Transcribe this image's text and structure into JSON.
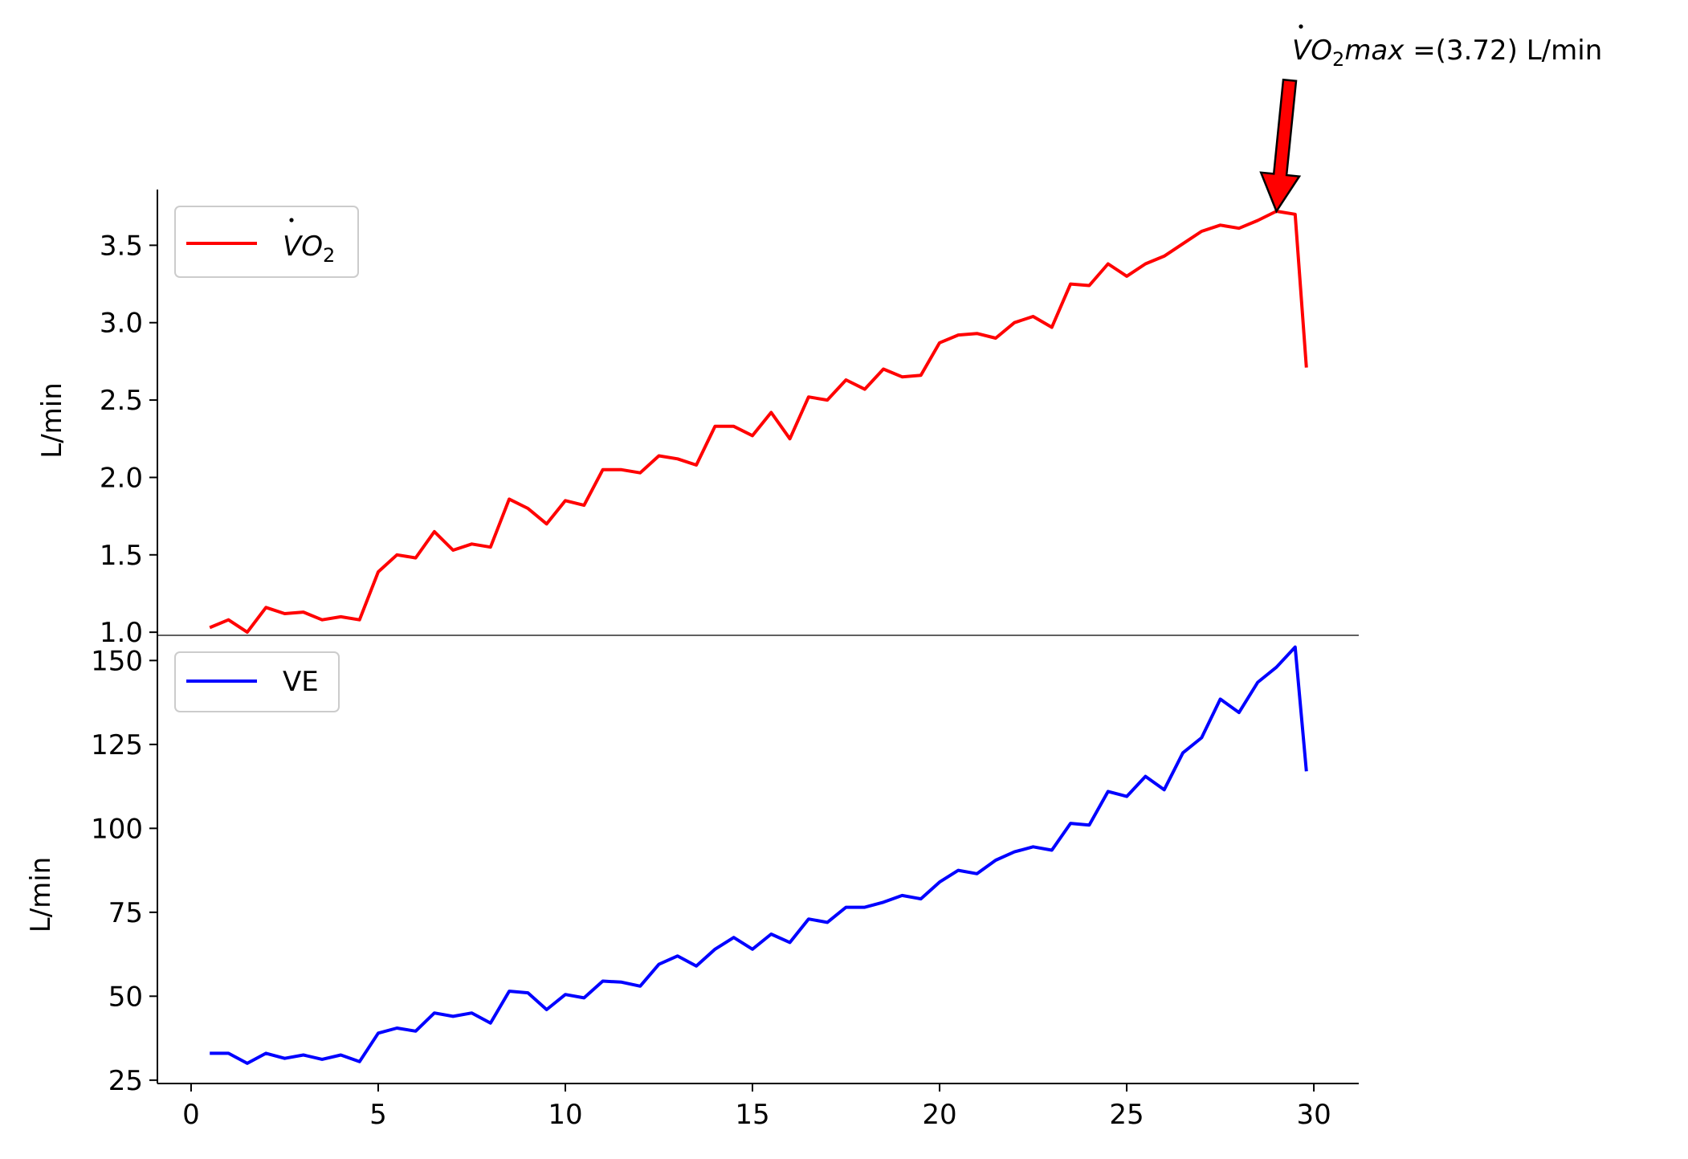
{
  "chart_data": [
    {
      "type": "line",
      "ylabel": "L/min",
      "ylim": [
        0.98,
        3.86
      ],
      "yticks": [
        1.0,
        1.5,
        2.0,
        2.5,
        3.0,
        3.5
      ],
      "ytick_labels": [
        "1.0",
        "1.5",
        "2.0",
        "2.5",
        "3.0",
        "3.5"
      ],
      "legend": {
        "placement": "top-left"
      },
      "series": [
        {
          "name": "VO2",
          "legend_main": "V",
          "legend_rest": "O",
          "legend_sub": "2",
          "color": "#ff0000",
          "x": [
            0.5,
            1.0,
            1.5,
            2.0,
            2.5,
            3.0,
            3.5,
            4.0,
            4.5,
            5.0,
            5.5,
            6.0,
            6.5,
            7.0,
            7.5,
            8.0,
            8.5,
            9.0,
            9.5,
            10.0,
            10.5,
            11.0,
            11.5,
            12.0,
            12.5,
            13.0,
            13.5,
            14.0,
            14.5,
            15.0,
            15.5,
            16.0,
            16.5,
            17.0,
            17.5,
            18.0,
            18.5,
            19.0,
            19.5,
            20.0,
            20.5,
            21.0,
            21.5,
            22.0,
            22.5,
            23.0,
            23.5,
            24.0,
            24.5,
            25.0,
            25.5,
            26.0,
            26.5,
            27.0,
            27.5,
            28.0,
            28.5,
            29.0,
            29.5,
            29.8
          ],
          "values": [
            1.03,
            1.08,
            1.0,
            1.16,
            1.12,
            1.13,
            1.08,
            1.1,
            1.08,
            1.39,
            1.5,
            1.48,
            1.65,
            1.53,
            1.57,
            1.55,
            1.86,
            1.8,
            1.7,
            1.85,
            1.82,
            2.05,
            2.05,
            2.03,
            2.14,
            2.12,
            2.08,
            2.33,
            2.33,
            2.27,
            2.42,
            2.25,
            2.52,
            2.5,
            2.63,
            2.57,
            2.7,
            2.65,
            2.66,
            2.87,
            2.92,
            2.93,
            2.9,
            3.0,
            3.04,
            2.97,
            3.25,
            3.24,
            3.38,
            3.3,
            3.38,
            3.43,
            3.51,
            3.59,
            3.63,
            3.61,
            3.66,
            3.72,
            3.7,
            2.71
          ]
        }
      ],
      "annotation": {
        "label_main": "V",
        "label_rest": "O",
        "label_sub": "2",
        "label_max": "max",
        "label_value": " =(3.72) L/min",
        "target_x": 29.0,
        "target_y": 3.72,
        "arrow_color": "#ff0000"
      }
    },
    {
      "type": "line",
      "xlabel": "",
      "ylabel": "L/min",
      "xlim": [
        -0.9,
        31.2
      ],
      "ylim": [
        24,
        157.5
      ],
      "xticks": [
        0,
        5,
        10,
        15,
        20,
        25,
        30
      ],
      "xtick_labels": [
        "0",
        "5",
        "10",
        "15",
        "20",
        "25",
        "30"
      ],
      "yticks": [
        25,
        50,
        75,
        100,
        125,
        150
      ],
      "ytick_labels": [
        "25",
        "50",
        "75",
        "100",
        "125",
        "150"
      ],
      "legend": {
        "placement": "top-left"
      },
      "series": [
        {
          "name": "VE",
          "color": "#0000ff",
          "x": [
            0.5,
            1.0,
            1.5,
            2.0,
            2.5,
            3.0,
            3.5,
            4.0,
            4.5,
            5.0,
            5.5,
            6.0,
            6.5,
            7.0,
            7.5,
            8.0,
            8.5,
            9.0,
            9.5,
            10.0,
            10.5,
            11.0,
            11.5,
            12.0,
            12.5,
            13.0,
            13.5,
            14.0,
            14.5,
            15.0,
            15.5,
            16.0,
            16.5,
            17.0,
            17.5,
            18.0,
            18.5,
            19.0,
            19.5,
            20.0,
            20.5,
            21.0,
            21.5,
            22.0,
            22.5,
            23.0,
            23.5,
            24.0,
            24.5,
            25.0,
            25.5,
            26.0,
            26.5,
            27.0,
            27.5,
            28.0,
            28.5,
            29.0,
            29.5,
            29.8
          ],
          "values": [
            33,
            33,
            30,
            33,
            31.5,
            32.5,
            31.2,
            32.5,
            30.5,
            39,
            40.5,
            39.6,
            45,
            44,
            45,
            42,
            51.5,
            51,
            46,
            50.5,
            49.5,
            54.5,
            54.2,
            53,
            59.5,
            62,
            59,
            64,
            67.5,
            64,
            68.5,
            66,
            73,
            72,
            76.5,
            76.5,
            78,
            80,
            79,
            84,
            87.5,
            86.5,
            90.5,
            93,
            94.5,
            93.5,
            101.5,
            101,
            111,
            109.5,
            115.5,
            111.5,
            122.5,
            127,
            138.5,
            134.5,
            143.5,
            148,
            154,
            117
          ]
        }
      ]
    }
  ]
}
